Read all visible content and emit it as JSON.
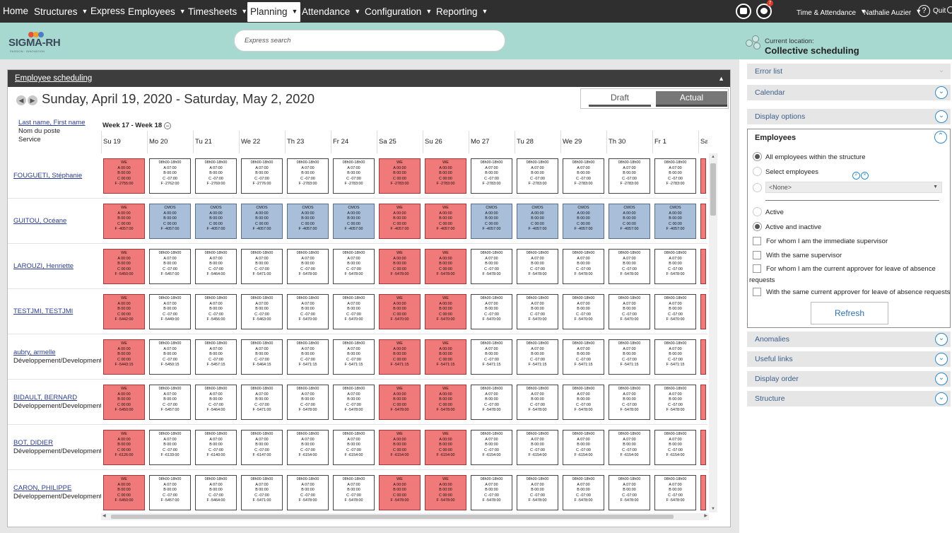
{
  "nav": {
    "items": [
      {
        "label": "Home",
        "caret": false
      },
      {
        "label": "Structures",
        "caret": true
      },
      {
        "label": "Express",
        "caret": false
      },
      {
        "label": "Employees",
        "caret": true
      },
      {
        "label": "Timesheets",
        "caret": true
      },
      {
        "label": "Planning",
        "caret": true,
        "active": true
      },
      {
        "label": "Attendance",
        "caret": true
      },
      {
        "label": "Configuration",
        "caret": true
      },
      {
        "label": "Reporting",
        "caret": true
      }
    ],
    "notifications_badge": "7",
    "module": "Time & Attendance",
    "user": "Nathalie Auzier",
    "help": "?",
    "quit": "Quit"
  },
  "header": {
    "logo_text": "SIGMA-RH",
    "logo_tagline": "PASSION · INNOVATION",
    "logo_colors": [
      "#e0523a",
      "#f29b2e",
      "#4a7fc1"
    ],
    "search_placeholder": "Express search",
    "location_label": "Current location:",
    "location_value": "Collective scheduling"
  },
  "main": {
    "title": "Employee scheduling",
    "date_range": "Sunday, April 19, 2020 - Saturday, May 2, 2020",
    "mode_draft": "Draft",
    "mode_actual": "Actual",
    "employee_header": [
      "Last name, First name",
      "Nom du poste",
      "Service"
    ],
    "week_label": "Week 17 - Week 18",
    "days": [
      "Su 19",
      "Mo 20",
      "Tu 21",
      "We 22",
      "Th 23",
      "Fr 24",
      "Sa 25",
      "Su 26",
      "Mo 27",
      "Tu 28",
      "We 29",
      "Th 30",
      "Fr 1",
      "Sa"
    ],
    "employees": [
      {
        "name": "FOUGUETI, Stéphanie",
        "dept": "",
        "days": [
          {
            "t": "we",
            "f": "F -2755:00"
          },
          {
            "t": "n",
            "f": "F -2762:00"
          },
          {
            "t": "n",
            "f": "F -2769:00"
          },
          {
            "t": "n",
            "f": "F -2776:00"
          },
          {
            "t": "n",
            "f": "F -2783:00"
          },
          {
            "t": "n",
            "f": "F -2783:00"
          },
          {
            "t": "we",
            "f": "F -2783:00"
          },
          {
            "t": "we",
            "f": "F -2783:00"
          },
          {
            "t": "n",
            "f": "F -2783:00"
          },
          {
            "t": "n",
            "f": "F -2783:00"
          },
          {
            "t": "n",
            "f": "F -2783:00"
          },
          {
            "t": "n",
            "f": "F -2783:00"
          },
          {
            "t": "n",
            "f": "F -2783:00"
          }
        ]
      },
      {
        "name": "GUITOU, Océane",
        "dept": "",
        "days": [
          {
            "t": "we",
            "f": "F -4057:00"
          },
          {
            "t": "cmos",
            "f": "F -4057:00"
          },
          {
            "t": "cmos",
            "f": "F -4057:00"
          },
          {
            "t": "cmos",
            "f": "F -4057:00"
          },
          {
            "t": "cmos",
            "f": "F -4057:00"
          },
          {
            "t": "cmos",
            "f": "F -4057:00"
          },
          {
            "t": "we",
            "f": "F -4057:00"
          },
          {
            "t": "we",
            "f": "F -4057:00"
          },
          {
            "t": "cmos",
            "f": "F -4057:00"
          },
          {
            "t": "cmos",
            "f": "F -4057:00"
          },
          {
            "t": "cmos",
            "f": "F -4057:00"
          },
          {
            "t": "cmos",
            "f": "F -4057:00"
          },
          {
            "t": "cmos",
            "f": "F -4057:00"
          }
        ]
      },
      {
        "name": "LAROUZI, Henriette",
        "dept": "",
        "days": [
          {
            "t": "we",
            "f": "F -5450:00"
          },
          {
            "t": "n",
            "f": "F -5457:00"
          },
          {
            "t": "n",
            "f": "F -5464:00"
          },
          {
            "t": "n",
            "f": "F -5471:00"
          },
          {
            "t": "n",
            "f": "F -5478:00"
          },
          {
            "t": "n",
            "f": "F -5478:00"
          },
          {
            "t": "we",
            "f": "F -5478:00"
          },
          {
            "t": "we",
            "f": "F -5478:00"
          },
          {
            "t": "n",
            "f": "F -5478:00"
          },
          {
            "t": "n",
            "f": "F -5478:00"
          },
          {
            "t": "n",
            "f": "F -5478:00"
          },
          {
            "t": "n",
            "f": "F -5478:00"
          },
          {
            "t": "n",
            "f": "F -5478:00"
          }
        ]
      },
      {
        "name": "TESTJMI, TESTJMI",
        "dept": "",
        "days": [
          {
            "t": "we",
            "f": "F -5442:00"
          },
          {
            "t": "n",
            "f": "F -5449:00"
          },
          {
            "t": "n",
            "f": "F -5456:00"
          },
          {
            "t": "n",
            "f": "F -5463:00"
          },
          {
            "t": "n",
            "f": "F -5470:00"
          },
          {
            "t": "n",
            "f": "F -5470:00"
          },
          {
            "t": "we",
            "f": "F -5470:00"
          },
          {
            "t": "we",
            "f": "F -5470:00"
          },
          {
            "t": "n",
            "f": "F -5470:00"
          },
          {
            "t": "n",
            "f": "F -5470:00"
          },
          {
            "t": "n",
            "f": "F -5470:00"
          },
          {
            "t": "n",
            "f": "F -5470:00"
          },
          {
            "t": "n",
            "f": "F -5470:00"
          }
        ]
      },
      {
        "name": "aubry, armelle",
        "dept": "Développement/Development",
        "days": [
          {
            "t": "we",
            "f": "F -5443:15"
          },
          {
            "t": "n",
            "f": "F -5450:15"
          },
          {
            "t": "n",
            "f": "F -5457:15"
          },
          {
            "t": "n",
            "f": "F -5464:15"
          },
          {
            "t": "n",
            "f": "F -5471:15"
          },
          {
            "t": "n",
            "f": "F -5471:15"
          },
          {
            "t": "we",
            "f": "F -5471:15"
          },
          {
            "t": "we",
            "f": "F -5471:15"
          },
          {
            "t": "n",
            "f": "F -5471:15"
          },
          {
            "t": "n",
            "f": "F -5471:15"
          },
          {
            "t": "n",
            "f": "F -5471:15"
          },
          {
            "t": "n",
            "f": "F -5471:15"
          },
          {
            "t": "n",
            "f": "F -5471:15"
          }
        ]
      },
      {
        "name": "BIDAULT, BERNARD",
        "dept": "Développement/Development",
        "days": [
          {
            "t": "we",
            "f": "F -5450:00"
          },
          {
            "t": "n",
            "f": "F -5457:00"
          },
          {
            "t": "n",
            "f": "F -5464:00"
          },
          {
            "t": "n",
            "f": "F -5471:00"
          },
          {
            "t": "n",
            "f": "F -5478:00"
          },
          {
            "t": "n",
            "f": "F -5478:00"
          },
          {
            "t": "we",
            "f": "F -5478:00"
          },
          {
            "t": "we",
            "f": "F -5478:00"
          },
          {
            "t": "n",
            "f": "F -5478:00"
          },
          {
            "t": "n",
            "f": "F -5478:00"
          },
          {
            "t": "n",
            "f": "F -5478:00"
          },
          {
            "t": "n",
            "f": "F -5478:00"
          },
          {
            "t": "n",
            "f": "F -5478:00"
          }
        ]
      },
      {
        "name": "BOT, DIDIER",
        "dept": "Développement/Development",
        "days": [
          {
            "t": "we",
            "f": "F -6126:00"
          },
          {
            "t": "n",
            "f": "F -6133:00"
          },
          {
            "t": "n",
            "f": "F -6140:00"
          },
          {
            "t": "n",
            "f": "F -6147:00"
          },
          {
            "t": "n",
            "f": "F -6154:00"
          },
          {
            "t": "n",
            "f": "F -6154:00"
          },
          {
            "t": "we",
            "f": "F -6154:00"
          },
          {
            "t": "we",
            "f": "F -6154:00"
          },
          {
            "t": "n",
            "f": "F -6154:00"
          },
          {
            "t": "n",
            "f": "F -6154:00"
          },
          {
            "t": "n",
            "f": "F -6154:00"
          },
          {
            "t": "n",
            "f": "F -6154:00"
          },
          {
            "t": "n",
            "f": "F -6154:00"
          }
        ]
      },
      {
        "name": "CARON, PHILIPPE",
        "dept": "Développement/Development",
        "days": [
          {
            "t": "we",
            "f": "F -5450:00"
          },
          {
            "t": "n",
            "f": "F -5457:00"
          },
          {
            "t": "n",
            "f": "F -5464:00"
          },
          {
            "t": "n",
            "f": "F -5471:00"
          },
          {
            "t": "n",
            "f": "F -5478:00"
          },
          {
            "t": "n",
            "f": "F -5478:00"
          },
          {
            "t": "we",
            "f": "F -5478:00"
          },
          {
            "t": "we",
            "f": "F -5478:00"
          },
          {
            "t": "n",
            "f": "F -5478:00"
          },
          {
            "t": "n",
            "f": "F -5478:00"
          },
          {
            "t": "n",
            "f": "F -5478:00"
          },
          {
            "t": "n",
            "f": "F -5478:00"
          },
          {
            "t": "n",
            "f": "F -5478:00"
          }
        ]
      }
    ],
    "cell_templates": {
      "we": [
        "WE",
        "A 00:00",
        "B 00:00",
        "C 00:00"
      ],
      "cmos": [
        "CMOS",
        "A 00:00",
        "B 00:00",
        "C 00:00"
      ],
      "n": [
        "08h00-18h00",
        "A 07:00",
        "B 00:00",
        "C -07:00"
      ]
    },
    "cell_colors": {
      "we": "#f07a7a",
      "cmos": "#a9bed9",
      "n": "#ffffff"
    }
  },
  "right": {
    "sections_top": [
      "Error list",
      "Calendar",
      "Display options"
    ],
    "employees": {
      "title": "Employees",
      "radio_all": "All employees within the structure",
      "radio_select": "Select employees",
      "none_option": "<None>",
      "radio_active": "Active",
      "radio_active_inactive": "Active and inactive",
      "check_supervisor": "For whom I am the immediate supervisor",
      "check_same_supervisor": "With the same supervisor",
      "check_approver_1": "For whom I am the current approver for leave of absence",
      "check_approver_2": "requests",
      "check_same_approver": "With the same current approver for leave of absence requests",
      "refresh": "Refresh"
    },
    "sections_bottom": [
      "Anomalies",
      "Useful links",
      "Display order",
      "Structure"
    ]
  }
}
